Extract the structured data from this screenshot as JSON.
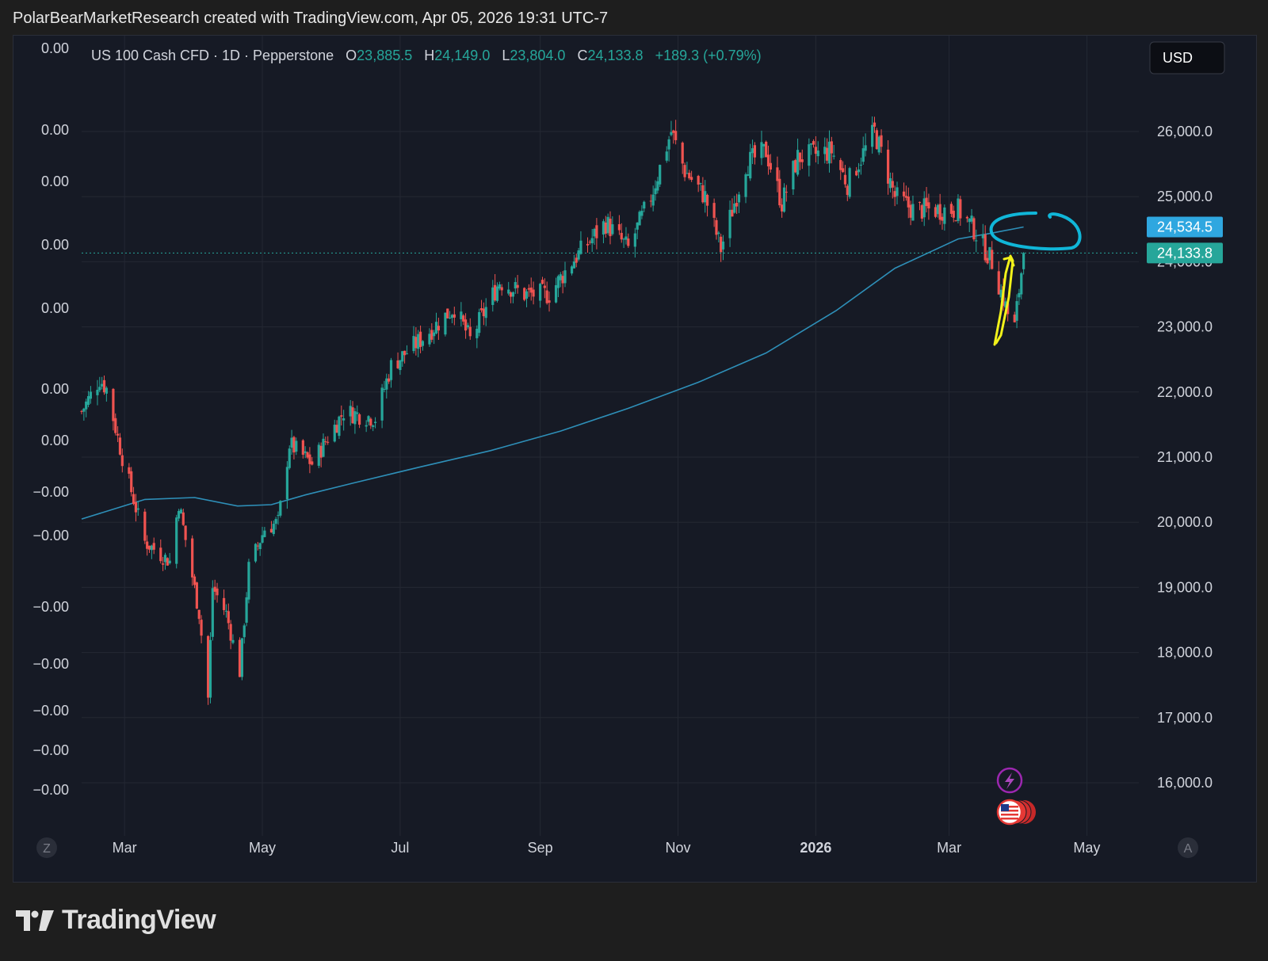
{
  "header": {
    "text": "PolarBearMarketResearch created with TradingView.com, Apr 05, 2026 19:31 UTC-7"
  },
  "legend": {
    "symbol": "US 100 Cash CFD · 1D · Pepperstone",
    "open_label": "O",
    "open": "23,885.5",
    "high_label": "H",
    "high": "24,149.0",
    "low_label": "L",
    "low": "23,804.0",
    "close_label": "C",
    "close": "24,133.8",
    "change": "+189.3 (+0.79%)"
  },
  "currency_button": "USD",
  "left_axis_labels": [
    "0.00",
    "0.00",
    "0.00",
    "0.00",
    "0.00",
    "0.00",
    "0.00",
    "−0.00",
    "−0.00",
    "−0.00",
    "−0.00",
    "−0.00",
    "−0.00",
    "−0.00"
  ],
  "price_tags": {
    "ma": "24,534.5",
    "last": "24,133.8"
  },
  "scale_buttons": {
    "left": "Z",
    "right": "A"
  },
  "footer": {
    "brand": "TradingView"
  },
  "colors": {
    "up": "#26a69a",
    "down": "#ef5350",
    "ma": "#2e8fb8",
    "ma_tag": "#2fa7e0",
    "last_tag": "#26a69a",
    "annot_cyan": "#10b6d8",
    "annot_yellow": "#f2f21a",
    "bg": "#161a25"
  },
  "icons": [
    "lightning-icon",
    "us-flag-icon"
  ],
  "chart_data": {
    "type": "candlestick",
    "instrument": "US 100 Cash CFD",
    "interval": "1D",
    "y_ticks": [
      16000,
      17000,
      18000,
      19000,
      20000,
      21000,
      22000,
      23000,
      24000,
      25000,
      26000
    ],
    "y_tick_labels": [
      "16,000.0",
      "17,000.0",
      "18,000.0",
      "19,000.0",
      "20,000.0",
      "21,000.0",
      "22,000.0",
      "23,000.0",
      "24,000.0",
      "25,000.0",
      "26,000.0"
    ],
    "x_tick_labels": [
      "Mar",
      "May",
      "Jul",
      "Sep",
      "Nov",
      "2026",
      "Mar",
      "May"
    ],
    "x_tick_dates": [
      "2025-03-01",
      "2025-05-01",
      "2025-07-01",
      "2025-09-01",
      "2025-11-01",
      "2026-01-01",
      "2026-03-01",
      "2026-05-01"
    ],
    "x_range": [
      "2025-02-10",
      "2026-05-24"
    ],
    "close_path": [
      [
        "2025-02-10",
        21700
      ],
      [
        "2025-02-18",
        22200
      ],
      [
        "2025-02-21",
        22050
      ],
      [
        "2025-02-28",
        21000
      ],
      [
        "2025-03-10",
        19700
      ],
      [
        "2025-03-21",
        19400
      ],
      [
        "2025-03-25",
        20300
      ],
      [
        "2025-04-03",
        18600
      ],
      [
        "2025-04-07",
        17300
      ],
      [
        "2025-04-09",
        19000
      ],
      [
        "2025-04-15",
        18600
      ],
      [
        "2025-04-21",
        17700
      ],
      [
        "2025-04-25",
        19300
      ],
      [
        "2025-05-02",
        19900
      ],
      [
        "2025-05-08",
        20000
      ],
      [
        "2025-05-13",
        21200
      ],
      [
        "2025-05-23",
        20900
      ],
      [
        "2025-06-06",
        21700
      ],
      [
        "2025-06-20",
        21600
      ],
      [
        "2025-06-27",
        22400
      ],
      [
        "2025-07-10",
        22800
      ],
      [
        "2025-07-25",
        23300
      ],
      [
        "2025-08-01",
        22800
      ],
      [
        "2025-08-14",
        23700
      ],
      [
        "2025-08-25",
        23500
      ],
      [
        "2025-09-05",
        23500
      ],
      [
        "2025-09-15",
        24000
      ],
      [
        "2025-09-30",
        24600
      ],
      [
        "2025-10-10",
        24200
      ],
      [
        "2025-10-20",
        25000
      ],
      [
        "2025-10-29",
        26000
      ],
      [
        "2025-11-04",
        25400
      ],
      [
        "2025-11-13",
        25000
      ],
      [
        "2025-11-20",
        24200
      ],
      [
        "2025-12-01",
        25500
      ],
      [
        "2025-12-10",
        25700
      ],
      [
        "2025-12-17",
        24900
      ],
      [
        "2025-12-24",
        25600
      ],
      [
        "2026-01-08",
        25700
      ],
      [
        "2026-01-15",
        25200
      ],
      [
        "2026-01-27",
        26000
      ],
      [
        "2026-02-05",
        25000
      ],
      [
        "2026-02-13",
        24800
      ],
      [
        "2026-02-23",
        24800
      ],
      [
        "2026-03-05",
        24800
      ],
      [
        "2026-03-12",
        24500
      ],
      [
        "2026-03-20",
        24000
      ],
      [
        "2026-03-27",
        23200
      ],
      [
        "2026-03-30",
        23000
      ],
      [
        "2026-04-03",
        24133.8
      ]
    ],
    "moving_average": [
      [
        "2025-02-10",
        20050
      ],
      [
        "2025-03-10",
        20350
      ],
      [
        "2025-04-01",
        20380
      ],
      [
        "2025-04-20",
        20250
      ],
      [
        "2025-05-05",
        20270
      ],
      [
        "2025-05-20",
        20420
      ],
      [
        "2025-06-10",
        20600
      ],
      [
        "2025-07-10",
        20850
      ],
      [
        "2025-08-10",
        21100
      ],
      [
        "2025-09-10",
        21400
      ],
      [
        "2025-10-10",
        21750
      ],
      [
        "2025-11-10",
        22150
      ],
      [
        "2025-12-10",
        22600
      ],
      [
        "2026-01-10",
        23250
      ],
      [
        "2026-02-05",
        23900
      ],
      [
        "2026-03-05",
        24350
      ],
      [
        "2026-03-20",
        24440
      ],
      [
        "2026-04-03",
        24534.5
      ]
    ],
    "last_ohlc": {
      "date": "2026-04-03",
      "open": 23885.5,
      "high": 24149.0,
      "low": 23804.0,
      "close": 24133.8,
      "change": 189.3,
      "change_pct": 0.79
    },
    "last_price": 24133.8,
    "ma_last": 24534.5,
    "grid": true,
    "legend_position": "top-left"
  }
}
